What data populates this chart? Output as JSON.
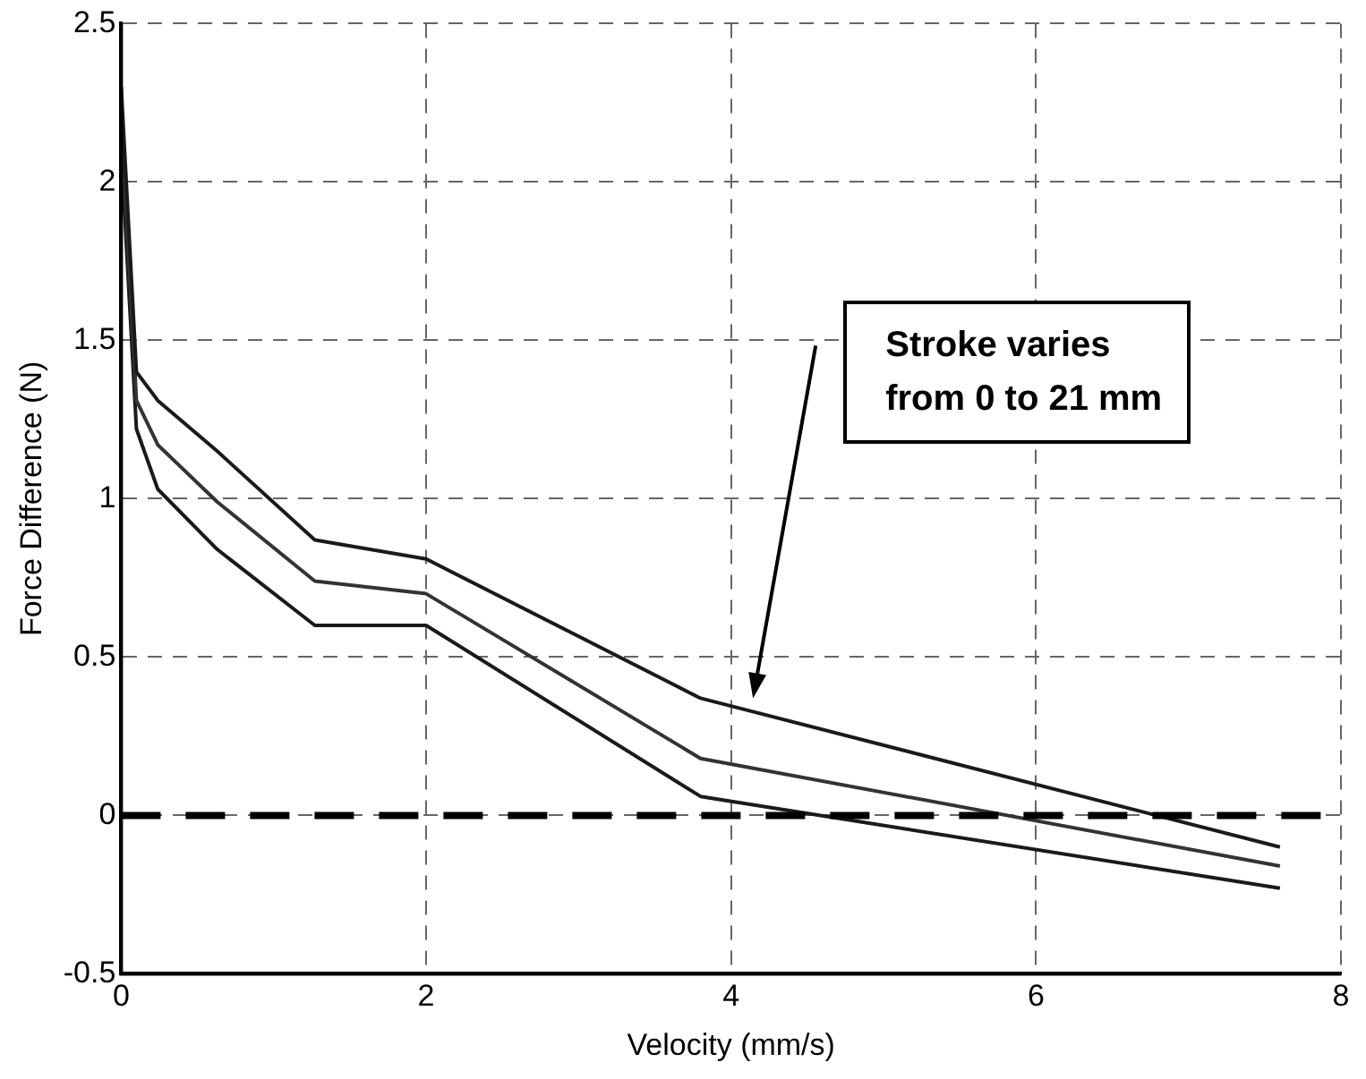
{
  "chart_data": {
    "type": "line",
    "xlabel": "Velocity (mm/s)",
    "ylabel": "Force Difference (N)",
    "xlim": [
      0,
      8
    ],
    "xticks": [
      0,
      2,
      4,
      6,
      8
    ],
    "ylim": [
      -0.5,
      2.5
    ],
    "yticks": [
      -0.5,
      0,
      0.5,
      1,
      1.5,
      2,
      2.5
    ],
    "grid": true,
    "line_style": "solid",
    "marker": "none",
    "x": [
      0,
      0.1,
      0.24,
      0.63,
      1.27,
      2.0,
      3.8,
      7.6
    ],
    "series": [
      {
        "color": "#1a1a1a",
        "values": [
          2.3,
          1.4,
          1.31,
          1.15,
          0.87,
          0.81,
          0.37,
          -0.1
        ]
      },
      {
        "color": "#333333",
        "values": [
          2.2,
          1.31,
          1.17,
          0.99,
          0.74,
          0.7,
          0.18,
          -0.16
        ]
      },
      {
        "color": "#1a1a1a",
        "values": [
          2.1,
          1.22,
          1.03,
          0.84,
          0.6,
          0.6,
          0.06,
          -0.23
        ]
      }
    ],
    "ref_lines": [
      {
        "axis": "y",
        "value": 0,
        "color": "#000000",
        "line_style": "dashed"
      }
    ],
    "annotations": [
      "Stroke varies\nfrom 0 to 21 mm"
    ]
  }
}
